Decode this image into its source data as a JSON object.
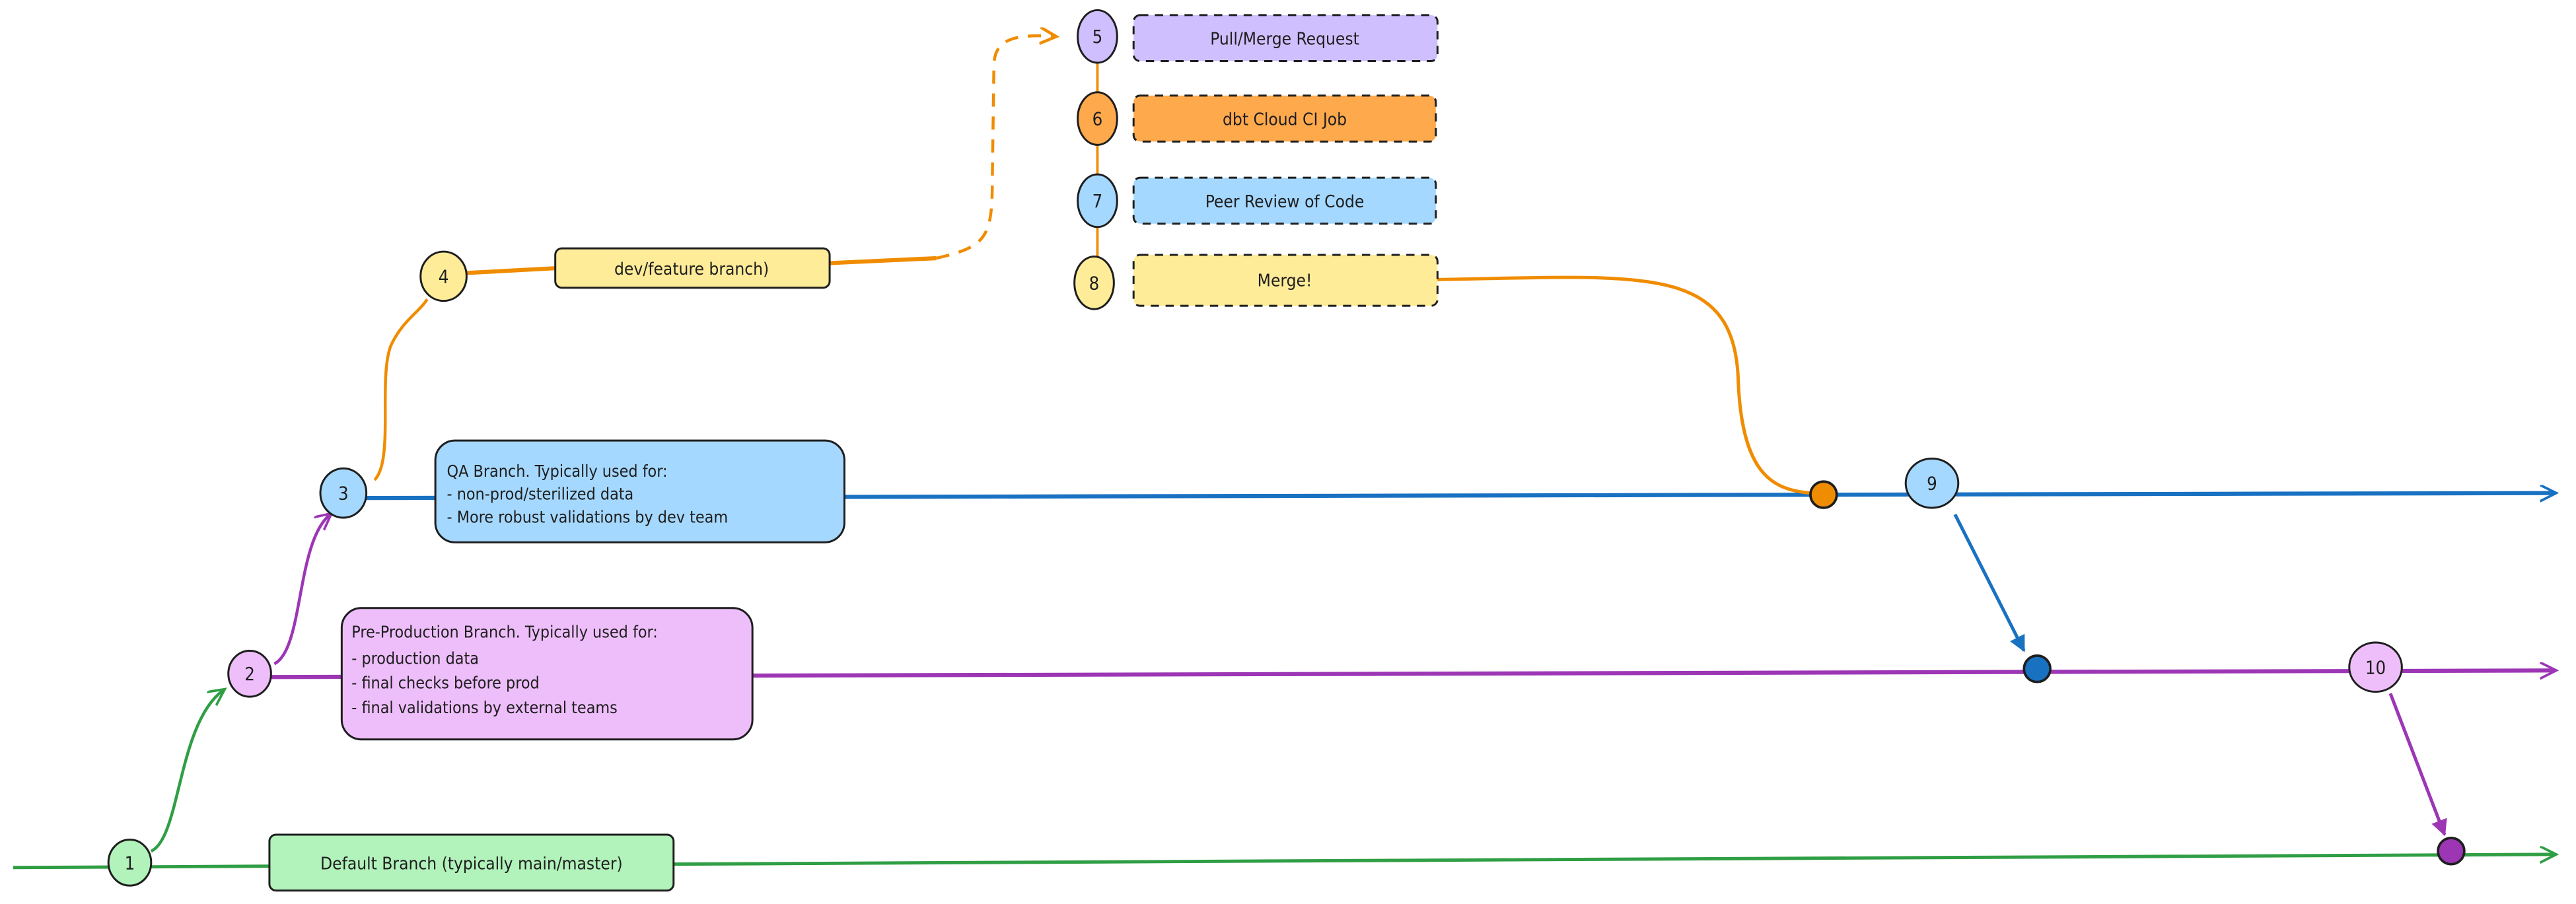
{
  "colors": {
    "main": "#2f9e44",
    "preprod": "#9c36b5",
    "qa": "#1971c2",
    "feature": "#f08c00",
    "node_green": "#b2f2bb",
    "node_purple": "#eebefa",
    "node_blue": "#a5d8ff",
    "node_yellow": "#ffec99",
    "node_lavender": "#d0bfff",
    "node_orange": "#ffa94d"
  },
  "nodes": [
    "1",
    "2",
    "3",
    "4",
    "5",
    "6",
    "7",
    "8",
    "9",
    "10"
  ],
  "boxes": {
    "default_branch": "Default Branch (typically main/master)",
    "preprod": {
      "title": "Pre-Production Branch. Typically used for:",
      "items": [
        "- production data",
        "- final checks before prod",
        "- final validations by external teams"
      ]
    },
    "qa": {
      "title": "QA Branch. Typically used for:",
      "items": [
        "- non-prod/sterilized data",
        "- More robust validations by dev team"
      ]
    },
    "feature": "dev/feature branch)",
    "pull_request": "Pull/Merge Request",
    "ci_job": "dbt Cloud CI Job",
    "peer_review": "Peer Review of Code",
    "merge": "Merge!"
  }
}
